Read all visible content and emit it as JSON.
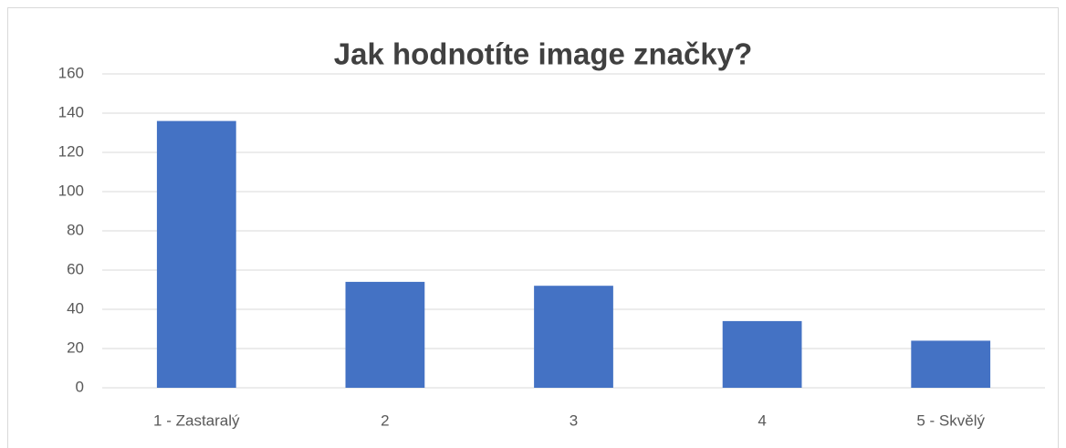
{
  "chart_data": {
    "type": "bar",
    "title": "Jak hodnotíte image značky?",
    "categories": [
      "1 - Zastaralý",
      "2",
      "3",
      "4",
      "5 - Skvělý"
    ],
    "values": [
      136,
      54,
      52,
      34,
      24
    ],
    "color": "#4472c4",
    "ylim": [
      0,
      160
    ],
    "yticks": [
      0,
      20,
      40,
      60,
      80,
      100,
      120,
      140,
      160
    ],
    "grid": true
  }
}
